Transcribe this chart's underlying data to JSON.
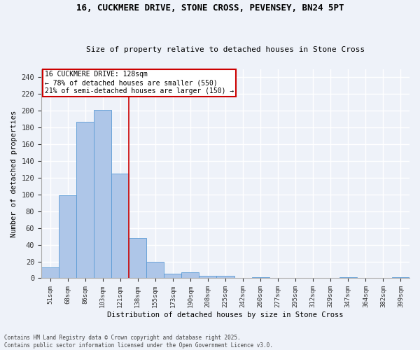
{
  "title_line1": "16, CUCKMERE DRIVE, STONE CROSS, PEVENSEY, BN24 5PT",
  "title_line2": "Size of property relative to detached houses in Stone Cross",
  "xlabel": "Distribution of detached houses by size in Stone Cross",
  "ylabel": "Number of detached properties",
  "categories": [
    "51sqm",
    "68sqm",
    "86sqm",
    "103sqm",
    "121sqm",
    "138sqm",
    "155sqm",
    "173sqm",
    "190sqm",
    "208sqm",
    "225sqm",
    "242sqm",
    "260sqm",
    "277sqm",
    "295sqm",
    "312sqm",
    "329sqm",
    "347sqm",
    "364sqm",
    "382sqm",
    "399sqm"
  ],
  "values": [
    13,
    99,
    187,
    201,
    125,
    48,
    20,
    5,
    7,
    3,
    3,
    0,
    1,
    0,
    0,
    0,
    0,
    1,
    0,
    0,
    1
  ],
  "bar_color": "#aec6e8",
  "bar_edge_color": "#5b9bd5",
  "vline_x": 4.5,
  "vline_color": "#cc0000",
  "annotation_title": "16 CUCKMERE DRIVE: 128sqm",
  "annotation_line2": "← 78% of detached houses are smaller (550)",
  "annotation_line3": "21% of semi-detached houses are larger (150) →",
  "annotation_box_color": "#cc0000",
  "ylim": [
    0,
    250
  ],
  "yticks": [
    0,
    20,
    40,
    60,
    80,
    100,
    120,
    140,
    160,
    180,
    200,
    220,
    240
  ],
  "background_color": "#eef2f9",
  "grid_color": "#ffffff",
  "footer_line1": "Contains HM Land Registry data © Crown copyright and database right 2025.",
  "footer_line2": "Contains public sector information licensed under the Open Government Licence v3.0."
}
